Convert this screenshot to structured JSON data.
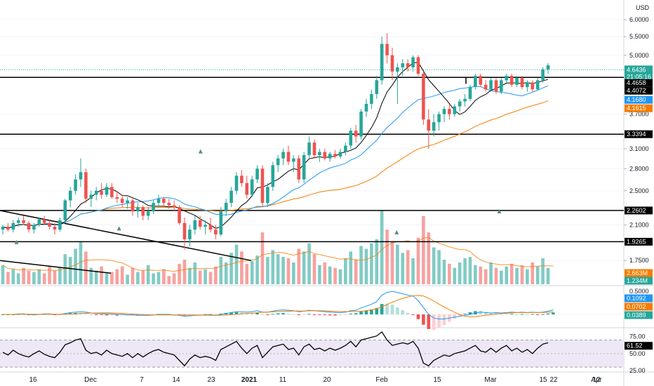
{
  "chart_data": [
    {
      "type": "candlestick",
      "panel": "price",
      "yunit": "USD",
      "yticks": [
        "6.0000",
        "5.5000",
        "5.0000",
        "3.7000",
        "3.1000",
        "2.8000",
        "2.5000",
        "2.1000",
        "1.7500"
      ],
      "ylim": [
        1.55,
        6.4
      ],
      "scale": "log",
      "x_labels": [
        "16",
        "Dec",
        "7",
        "14",
        "23",
        "2021",
        "11",
        "20",
        "Feb",
        "15",
        "Mar",
        "15",
        "22",
        "Apr",
        "12"
      ],
      "candles": [
        [
          2.05,
          2.1,
          2.0,
          2.08
        ],
        [
          2.08,
          2.12,
          2.03,
          2.05
        ],
        [
          2.05,
          2.15,
          2.02,
          2.12
        ],
        [
          2.12,
          2.18,
          2.08,
          2.15
        ],
        [
          2.15,
          2.2,
          2.1,
          2.12
        ],
        [
          2.12,
          2.14,
          2.02,
          2.05
        ],
        [
          2.05,
          2.12,
          2.01,
          2.1
        ],
        [
          2.1,
          2.18,
          2.08,
          2.16
        ],
        [
          2.16,
          2.2,
          2.1,
          2.12
        ],
        [
          2.12,
          2.15,
          2.05,
          2.08
        ],
        [
          2.08,
          2.12,
          2.0,
          2.05
        ],
        [
          2.05,
          2.18,
          2.03,
          2.15
        ],
        [
          2.15,
          2.4,
          2.12,
          2.38
        ],
        [
          2.38,
          2.55,
          2.3,
          2.5
        ],
        [
          2.5,
          2.72,
          2.45,
          2.65
        ],
        [
          2.65,
          2.95,
          2.55,
          2.75
        ],
        [
          2.75,
          2.8,
          2.35,
          2.4
        ],
        [
          2.4,
          2.5,
          2.3,
          2.45
        ],
        [
          2.45,
          2.55,
          2.38,
          2.5
        ],
        [
          2.5,
          2.6,
          2.4,
          2.45
        ],
        [
          2.45,
          2.6,
          2.42,
          2.55
        ],
        [
          2.55,
          2.6,
          2.4,
          2.42
        ],
        [
          2.42,
          2.5,
          2.35,
          2.4
        ],
        [
          2.4,
          2.45,
          2.3,
          2.35
        ],
        [
          2.35,
          2.42,
          2.28,
          2.38
        ],
        [
          2.38,
          2.4,
          2.2,
          2.25
        ],
        [
          2.25,
          2.35,
          2.18,
          2.3
        ],
        [
          2.3,
          2.32,
          2.15,
          2.2
        ],
        [
          2.2,
          2.3,
          2.15,
          2.25
        ],
        [
          2.25,
          2.38,
          2.22,
          2.35
        ],
        [
          2.35,
          2.45,
          2.3,
          2.4
        ],
        [
          2.4,
          2.42,
          2.3,
          2.35
        ],
        [
          2.35,
          2.4,
          2.28,
          2.32
        ],
        [
          2.32,
          2.38,
          2.25,
          2.3
        ],
        [
          2.3,
          2.32,
          2.1,
          2.12
        ],
        [
          2.12,
          2.18,
          1.85,
          1.95
        ],
        [
          1.95,
          2.1,
          1.88,
          2.05
        ],
        [
          2.05,
          2.2,
          2.0,
          2.15
        ],
        [
          2.15,
          2.2,
          2.05,
          2.08
        ],
        [
          2.08,
          2.15,
          2.0,
          2.1
        ],
        [
          2.1,
          2.18,
          2.02,
          2.05
        ],
        [
          2.05,
          2.1,
          1.95,
          2.0
        ],
        [
          2.0,
          2.3,
          1.98,
          2.25
        ],
        [
          2.25,
          2.4,
          2.2,
          2.35
        ],
        [
          2.35,
          2.55,
          2.3,
          2.5
        ],
        [
          2.5,
          2.75,
          2.45,
          2.7
        ],
        [
          2.7,
          2.78,
          2.55,
          2.6
        ],
        [
          2.6,
          2.7,
          2.4,
          2.45
        ],
        [
          2.45,
          2.7,
          2.42,
          2.65
        ],
        [
          2.65,
          2.85,
          2.6,
          2.8
        ],
        [
          2.8,
          2.85,
          2.3,
          2.35
        ],
        [
          2.35,
          2.6,
          2.3,
          2.55
        ],
        [
          2.55,
          2.9,
          2.5,
          2.85
        ],
        [
          2.85,
          3.0,
          2.75,
          2.95
        ],
        [
          2.95,
          3.1,
          2.85,
          3.05
        ],
        [
          3.05,
          3.15,
          2.85,
          2.9
        ],
        [
          2.9,
          3.0,
          2.75,
          2.95
        ],
        [
          2.95,
          3.0,
          2.6,
          2.65
        ],
        [
          2.65,
          3.05,
          2.6,
          3.0
        ],
        [
          3.0,
          3.3,
          2.95,
          3.2
        ],
        [
          3.2,
          3.25,
          2.95,
          3.0
        ],
        [
          3.0,
          3.1,
          2.9,
          3.05
        ],
        [
          3.05,
          3.1,
          2.92,
          2.95
        ],
        [
          2.95,
          3.05,
          2.9,
          3.02
        ],
        [
          3.02,
          3.08,
          2.95,
          2.98
        ],
        [
          2.98,
          3.1,
          2.95,
          3.05
        ],
        [
          3.05,
          3.2,
          3.0,
          3.15
        ],
        [
          3.15,
          3.45,
          3.1,
          3.4
        ],
        [
          3.4,
          3.5,
          3.2,
          3.3
        ],
        [
          3.3,
          3.8,
          3.25,
          3.75
        ],
        [
          3.75,
          4.0,
          3.65,
          3.9
        ],
        [
          3.9,
          4.2,
          3.8,
          4.1
        ],
        [
          4.1,
          4.5,
          4.0,
          4.4
        ],
        [
          4.4,
          5.5,
          4.3,
          5.3
        ],
        [
          5.3,
          5.6,
          4.8,
          5.0
        ],
        [
          5.0,
          5.2,
          4.4,
          4.6
        ],
        [
          4.6,
          4.8,
          3.9,
          4.7
        ],
        [
          4.7,
          4.9,
          4.5,
          4.8
        ],
        [
          4.8,
          4.9,
          4.6,
          4.7
        ],
        [
          4.7,
          5.0,
          4.6,
          4.95
        ],
        [
          4.95,
          5.0,
          4.5,
          4.55
        ],
        [
          4.55,
          4.6,
          3.5,
          3.6
        ],
        [
          3.6,
          3.8,
          3.1,
          3.4
        ],
        [
          3.4,
          3.7,
          3.3,
          3.55
        ],
        [
          3.55,
          3.75,
          3.4,
          3.7
        ],
        [
          3.7,
          3.85,
          3.55,
          3.8
        ],
        [
          3.8,
          3.9,
          3.6,
          3.7
        ],
        [
          3.7,
          3.9,
          3.65,
          3.85
        ],
        [
          3.85,
          4.0,
          3.75,
          3.95
        ],
        [
          3.95,
          4.1,
          3.85,
          4.0
        ],
        [
          4.0,
          4.3,
          3.95,
          4.25
        ],
        [
          4.25,
          4.55,
          4.2,
          4.5
        ],
        [
          4.5,
          4.55,
          4.25,
          4.3
        ],
        [
          4.3,
          4.4,
          4.15,
          4.2
        ],
        [
          4.2,
          4.45,
          4.15,
          4.4
        ],
        [
          4.4,
          4.45,
          4.1,
          4.15
        ],
        [
          4.15,
          4.45,
          4.1,
          4.4
        ],
        [
          4.4,
          4.55,
          4.35,
          4.5
        ],
        [
          4.5,
          4.55,
          4.25,
          4.3
        ],
        [
          4.3,
          4.5,
          4.25,
          4.45
        ],
        [
          4.45,
          4.5,
          4.2,
          4.25
        ],
        [
          4.25,
          4.4,
          4.15,
          4.35
        ],
        [
          4.35,
          4.4,
          4.15,
          4.2
        ],
        [
          4.2,
          4.45,
          4.18,
          4.4
        ],
        [
          4.4,
          4.7,
          4.35,
          4.65
        ],
        [
          4.65,
          4.8,
          4.55,
          4.75
        ]
      ],
      "volume": [
        1.4,
        0.9,
        1.1,
        0.8,
        1.2,
        1.0,
        0.9,
        1.1,
        0.8,
        1.3,
        1.0,
        1.2,
        2.2,
        2.0,
        2.6,
        3.1,
        2.4,
        1.2,
        1.0,
        1.3,
        0.8,
        0.9,
        1.1,
        1.3,
        0.7,
        1.2,
        0.9,
        1.0,
        1.4,
        0.8,
        0.9,
        1.1,
        0.6,
        0.8,
        1.5,
        1.8,
        1.2,
        1.6,
        1.0,
        1.1,
        0.9,
        1.3,
        2.0,
        1.6,
        2.3,
        2.9,
        2.4,
        1.5,
        1.7,
        2.1,
        3.8,
        2.0,
        2.5,
        2.2,
        2.0,
        1.9,
        1.6,
        2.6,
        2.4,
        3.0,
        2.2,
        1.4,
        1.6,
        1.3,
        1.2,
        1.1,
        1.9,
        2.4,
        1.8,
        2.8,
        2.6,
        3.0,
        3.3,
        5.4,
        4.0,
        3.1,
        2.9,
        2.3,
        2.5,
        1.9,
        3.4,
        5.0,
        3.8,
        2.7,
        2.5,
        1.8,
        1.5,
        1.2,
        1.6,
        1.9,
        2.0,
        1.4,
        1.3,
        1.1,
        1.6,
        1.2,
        1.0,
        1.3,
        1.5,
        1.2,
        1.4,
        1.1,
        1.6,
        1.3,
        1.9,
        1.2,
        0.8
      ],
      "volume_axis": [
        "2.663M",
        "1.234M"
      ],
      "levels": [
        {
          "value": 4.4658,
          "label": "4.4658",
          "color": "#000000"
        },
        {
          "value": 3.3394,
          "label": "3.3394",
          "color": "#000000"
        },
        {
          "value": 2.2602,
          "label": "2.2602",
          "color": "#000000"
        },
        {
          "value": 1.9265,
          "label": "1.9265",
          "color": "#000000"
        }
      ],
      "badges": [
        {
          "value": 4.6436,
          "label": "4.6436",
          "sub": "21:05:16",
          "color": "#26a69a"
        },
        {
          "value": 4.4072,
          "label": "4.4072",
          "color": "#000000"
        },
        {
          "value": 4.168,
          "label": "4.1680",
          "color": "#2196f3"
        },
        {
          "value": 4.1615,
          "label": "4.1615",
          "color": "#f57c00"
        }
      ],
      "colors": {
        "up": "#26a69a",
        "down": "#ef5350",
        "ma_fast": "#000000",
        "ma_mid": "#2196f3",
        "ma_slow": "#f57c00"
      }
    },
    {
      "type": "macd",
      "panel": "macd",
      "yticks": [
        "0.5000"
      ],
      "values": [
        0.0,
        0.0,
        0.0,
        0.01,
        0.01,
        0.0,
        -0.01,
        0.0,
        0.01,
        0.01,
        0.0,
        0.0,
        0.02,
        0.04,
        0.05,
        0.06,
        0.05,
        0.03,
        0.02,
        0.02,
        0.01,
        0.01,
        0.0,
        0.0,
        -0.01,
        -0.01,
        -0.02,
        -0.02,
        -0.02,
        -0.01,
        0.0,
        0.0,
        0.0,
        -0.01,
        -0.02,
        -0.04,
        -0.03,
        -0.02,
        -0.02,
        -0.01,
        -0.01,
        -0.02,
        0.0,
        0.02,
        0.04,
        0.06,
        0.06,
        0.05,
        0.06,
        0.08,
        0.05,
        0.05,
        0.07,
        0.09,
        0.1,
        0.09,
        0.08,
        0.06,
        0.07,
        0.09,
        0.08,
        0.07,
        0.06,
        0.05,
        0.04,
        0.04,
        0.05,
        0.08,
        0.09,
        0.14,
        0.18,
        0.22,
        0.28,
        0.42,
        0.48,
        0.5,
        0.48,
        0.45,
        0.42,
        0.4,
        0.3,
        0.15,
        0.0,
        -0.08,
        -0.1,
        -0.1,
        -0.08,
        -0.06,
        -0.04,
        -0.02,
        0.0,
        0.03,
        0.05,
        0.04,
        0.03,
        0.04,
        0.03,
        0.04,
        0.05,
        0.04,
        0.05,
        0.04,
        0.05,
        0.04,
        0.05,
        0.07,
        0.1
      ],
      "badges": [
        {
          "value": 0.1092,
          "label": "0.1092",
          "color": "#2196f3"
        },
        {
          "value": 0.0702,
          "label": "0.0702",
          "color": "#f57c00"
        },
        {
          "value": 0.0389,
          "label": "0.0389",
          "color": "#26a69a"
        }
      ]
    },
    {
      "type": "rsi",
      "panel": "rsi",
      "yticks": [
        "75.00",
        "50.00",
        "25.00"
      ],
      "ylim": [
        25,
        85
      ],
      "values": [
        52,
        48,
        55,
        50,
        47,
        45,
        50,
        54,
        49,
        46,
        44,
        52,
        63,
        66,
        70,
        72,
        55,
        50,
        52,
        48,
        55,
        50,
        48,
        46,
        50,
        44,
        50,
        45,
        50,
        54,
        56,
        52,
        50,
        48,
        40,
        32,
        42,
        48,
        44,
        46,
        44,
        40,
        56,
        60,
        64,
        68,
        58,
        50,
        58,
        62,
        44,
        52,
        60,
        62,
        64,
        56,
        58,
        48,
        60,
        64,
        56,
        58,
        54,
        58,
        55,
        58,
        62,
        68,
        60,
        70,
        72,
        74,
        76,
        82,
        70,
        62,
        64,
        66,
        64,
        68,
        58,
        36,
        32,
        40,
        44,
        48,
        46,
        50,
        52,
        54,
        58,
        62,
        54,
        52,
        58,
        52,
        58,
        62,
        54,
        58,
        52,
        56,
        50,
        58,
        64,
        66
      ],
      "badge": {
        "value": 61.52,
        "label": "61.52",
        "color": "#000000"
      },
      "colors": {
        "band": "#ede7f6",
        "line": "#000000"
      }
    }
  ]
}
